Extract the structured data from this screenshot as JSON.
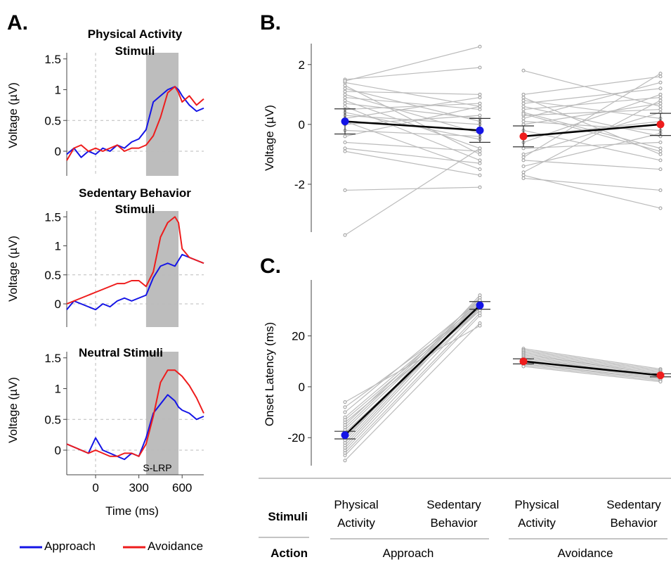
{
  "panel_labels": {
    "a": "A.",
    "b": "B.",
    "c": "C."
  },
  "legend": {
    "approach": "Approach",
    "avoidance": "Avoidance"
  },
  "colors": {
    "approach": "#1414e6",
    "avoidance": "#ee1c1c",
    "window": "#bdbdbd",
    "subject": "#bbbbbb",
    "mean": "#000000"
  },
  "bottom_axis": {
    "stimuli_label": "Stimuli",
    "action_label": "Action",
    "conditions": [
      {
        "line1": "Physical",
        "line2": "Activity"
      },
      {
        "line1": "Sedentary",
        "line2": "Behavior"
      },
      {
        "line1": "Physical",
        "line2": "Activity"
      },
      {
        "line1": "Sedentary",
        "line2": "Behavior"
      }
    ],
    "actions": [
      "Approach",
      "Avoidance"
    ]
  },
  "chart_data": [
    {
      "type": "line",
      "panel": "A",
      "title": [
        "Physical Activity",
        "Stimuli"
      ],
      "ylabel": "Voltage (µV)",
      "xlim": [
        -200,
        750
      ],
      "ylim": [
        -0.4,
        1.6
      ],
      "yticks": [
        "0",
        "0.5",
        "1",
        "1.5"
      ],
      "shaded_window": [
        350,
        575
      ],
      "series": [
        {
          "name": "Approach",
          "points": [
            [
              -200,
              -0.05
            ],
            [
              -150,
              0.05
            ],
            [
              -100,
              -0.1
            ],
            [
              -50,
              0.0
            ],
            [
              0,
              -0.05
            ],
            [
              50,
              0.05
            ],
            [
              100,
              0.0
            ],
            [
              150,
              0.1
            ],
            [
              200,
              0.05
            ],
            [
              250,
              0.15
            ],
            [
              300,
              0.2
            ],
            [
              350,
              0.35
            ],
            [
              400,
              0.8
            ],
            [
              450,
              0.9
            ],
            [
              500,
              1.0
            ],
            [
              550,
              1.05
            ],
            [
              575,
              1.0
            ],
            [
              600,
              0.9
            ],
            [
              650,
              0.75
            ],
            [
              700,
              0.65
            ],
            [
              750,
              0.7
            ]
          ]
        },
        {
          "name": "Avoidance",
          "points": [
            [
              -200,
              -0.15
            ],
            [
              -150,
              0.05
            ],
            [
              -100,
              0.1
            ],
            [
              -50,
              0.0
            ],
            [
              0,
              0.05
            ],
            [
              50,
              0.0
            ],
            [
              100,
              0.05
            ],
            [
              150,
              0.1
            ],
            [
              200,
              0.0
            ],
            [
              250,
              0.05
            ],
            [
              300,
              0.05
            ],
            [
              350,
              0.1
            ],
            [
              400,
              0.25
            ],
            [
              450,
              0.55
            ],
            [
              500,
              0.95
            ],
            [
              550,
              1.05
            ],
            [
              575,
              0.95
            ],
            [
              600,
              0.8
            ],
            [
              650,
              0.9
            ],
            [
              700,
              0.75
            ],
            [
              750,
              0.85
            ]
          ]
        }
      ]
    },
    {
      "type": "line",
      "panel": "A",
      "title": [
        "Sedentary Behavior",
        "Stimuli"
      ],
      "ylabel": "Voltage (µV)",
      "xlim": [
        -200,
        750
      ],
      "ylim": [
        -0.4,
        1.6
      ],
      "yticks": [
        "0",
        "0.5",
        "1",
        "1.5"
      ],
      "shaded_window": [
        350,
        575
      ],
      "series": [
        {
          "name": "Approach",
          "points": [
            [
              -200,
              -0.1
            ],
            [
              -150,
              0.05
            ],
            [
              -100,
              0.0
            ],
            [
              -50,
              -0.05
            ],
            [
              0,
              -0.1
            ],
            [
              50,
              0.0
            ],
            [
              100,
              -0.05
            ],
            [
              150,
              0.05
            ],
            [
              200,
              0.1
            ],
            [
              250,
              0.05
            ],
            [
              300,
              0.1
            ],
            [
              350,
              0.15
            ],
            [
              400,
              0.45
            ],
            [
              450,
              0.65
            ],
            [
              500,
              0.7
            ],
            [
              550,
              0.65
            ],
            [
              575,
              0.75
            ],
            [
              600,
              0.85
            ],
            [
              650,
              0.8
            ],
            [
              700,
              0.75
            ],
            [
              750,
              0.7
            ]
          ]
        },
        {
          "name": "Avoidance",
          "points": [
            [
              -200,
              0.0
            ],
            [
              -150,
              0.05
            ],
            [
              -100,
              0.1
            ],
            [
              -50,
              0.15
            ],
            [
              0,
              0.2
            ],
            [
              50,
              0.25
            ],
            [
              100,
              0.3
            ],
            [
              150,
              0.35
            ],
            [
              200,
              0.35
            ],
            [
              250,
              0.4
            ],
            [
              300,
              0.4
            ],
            [
              350,
              0.3
            ],
            [
              400,
              0.55
            ],
            [
              450,
              1.15
            ],
            [
              500,
              1.4
            ],
            [
              550,
              1.5
            ],
            [
              575,
              1.4
            ],
            [
              600,
              0.95
            ],
            [
              650,
              0.8
            ],
            [
              700,
              0.75
            ],
            [
              750,
              0.7
            ]
          ]
        }
      ]
    },
    {
      "type": "line",
      "panel": "A",
      "title": [
        "Neutral Stimuli"
      ],
      "ylabel": "Voltage (µV)",
      "xlabel": "Time (ms)",
      "xticks": [
        "0",
        "300",
        "600"
      ],
      "xlim": [
        -200,
        750
      ],
      "ylim": [
        -0.4,
        1.6
      ],
      "yticks": [
        "0",
        "0.5",
        "1",
        "1.5"
      ],
      "shaded_window": [
        350,
        575
      ],
      "window_label": "S-LRP",
      "series": [
        {
          "name": "Approach",
          "points": [
            [
              -200,
              0.1
            ],
            [
              -150,
              0.05
            ],
            [
              -100,
              0.0
            ],
            [
              -50,
              -0.05
            ],
            [
              0,
              0.2
            ],
            [
              50,
              0.0
            ],
            [
              100,
              -0.05
            ],
            [
              150,
              -0.1
            ],
            [
              200,
              -0.15
            ],
            [
              250,
              -0.05
            ],
            [
              300,
              -0.1
            ],
            [
              350,
              0.2
            ],
            [
              400,
              0.6
            ],
            [
              450,
              0.75
            ],
            [
              500,
              0.9
            ],
            [
              550,
              0.8
            ],
            [
              575,
              0.7
            ],
            [
              600,
              0.65
            ],
            [
              650,
              0.6
            ],
            [
              700,
              0.5
            ],
            [
              750,
              0.55
            ]
          ]
        },
        {
          "name": "Avoidance",
          "points": [
            [
              -200,
              0.1
            ],
            [
              -150,
              0.05
            ],
            [
              -100,
              0.0
            ],
            [
              -50,
              -0.05
            ],
            [
              0,
              0.0
            ],
            [
              50,
              -0.05
            ],
            [
              100,
              -0.1
            ],
            [
              150,
              -0.1
            ],
            [
              200,
              -0.05
            ],
            [
              250,
              -0.05
            ],
            [
              300,
              -0.1
            ],
            [
              350,
              0.1
            ],
            [
              400,
              0.55
            ],
            [
              450,
              1.1
            ],
            [
              500,
              1.3
            ],
            [
              550,
              1.3
            ],
            [
              575,
              1.25
            ],
            [
              600,
              1.2
            ],
            [
              650,
              1.05
            ],
            [
              700,
              0.85
            ],
            [
              750,
              0.6
            ]
          ]
        }
      ]
    },
    {
      "type": "scatter",
      "panel": "B",
      "ylabel": "Voltage (µV)",
      "ylim": [
        -3.6,
        2.7
      ],
      "yticks": [
        2,
        0,
        -2
      ],
      "means": [
        0.1,
        -0.2,
        -0.4,
        0.0
      ],
      "errors": [
        0.42,
        0.4,
        0.35,
        0.37
      ],
      "subjects": [
        [
          [
            1.5,
            1.9
          ],
          [
            1.4,
            0.6
          ],
          [
            1.3,
            -1.0
          ],
          [
            1.2,
            0.1
          ],
          [
            1.1,
            1.0
          ],
          [
            1.0,
            -0.3
          ],
          [
            0.9,
            0.5
          ],
          [
            0.8,
            -0.8
          ],
          [
            0.7,
            0.2
          ],
          [
            0.6,
            -1.2
          ],
          [
            0.5,
            0.7
          ],
          [
            0.4,
            -0.5
          ],
          [
            0.3,
            0.0
          ],
          [
            0.2,
            0.9
          ],
          [
            0.1,
            -1.5
          ],
          [
            0.0,
            0.3
          ],
          [
            -0.2,
            -0.4
          ],
          [
            -0.4,
            0.6
          ],
          [
            -0.6,
            -0.9
          ],
          [
            -0.8,
            -1.3
          ],
          [
            -0.9,
            -1.7
          ],
          [
            -2.2,
            -2.1
          ],
          [
            -3.7,
            -0.8
          ],
          [
            1.45,
            2.6
          ]
        ],
        [
          [
            1.8,
            0.6
          ],
          [
            1.0,
            1.6
          ],
          [
            0.9,
            -1.0
          ],
          [
            0.8,
            0.2
          ],
          [
            0.7,
            1.2
          ],
          [
            0.6,
            -0.4
          ],
          [
            0.5,
            0.9
          ],
          [
            0.4,
            -0.8
          ],
          [
            0.3,
            0.5
          ],
          [
            0.2,
            1.4
          ],
          [
            0.1,
            -0.2
          ],
          [
            0.0,
            0.7
          ],
          [
            -0.2,
            -1.2
          ],
          [
            -0.4,
            0.1
          ],
          [
            -0.6,
            1.0
          ],
          [
            -0.8,
            -0.6
          ],
          [
            -1.0,
            0.4
          ],
          [
            -1.2,
            -1.5
          ],
          [
            -1.4,
            -0.3
          ],
          [
            -1.6,
            0.8
          ],
          [
            -1.8,
            -2.2
          ],
          [
            -1.7,
            -2.8
          ],
          [
            -1.1,
            1.7
          ],
          [
            0.35,
            -0.9
          ]
        ]
      ]
    },
    {
      "type": "scatter",
      "panel": "C",
      "ylabel": "Onset Latency (ms)",
      "ylim": [
        -31,
        42
      ],
      "yticks": [
        20,
        0,
        -20
      ],
      "means": [
        -19,
        32,
        10,
        4.5
      ],
      "errors": [
        1.5,
        1.5,
        1.0,
        0.6
      ],
      "subjects": [
        [
          [
            -29,
            25
          ],
          [
            -27,
            28
          ],
          [
            -26,
            29
          ],
          [
            -25,
            31
          ],
          [
            -24,
            33
          ],
          [
            -23,
            34
          ],
          [
            -22,
            35
          ],
          [
            -21,
            36
          ],
          [
            -20,
            32
          ],
          [
            -19,
            30
          ],
          [
            -18,
            31
          ],
          [
            -17,
            33
          ],
          [
            -16,
            34
          ],
          [
            -15,
            35
          ],
          [
            -14,
            30
          ],
          [
            -13,
            32
          ],
          [
            -12,
            33
          ],
          [
            -10,
            34
          ],
          [
            -8,
            31
          ],
          [
            -6,
            24
          ]
        ],
        [
          [
            15,
            7
          ],
          [
            14.5,
            6.5
          ],
          [
            14,
            6
          ],
          [
            13.5,
            5.5
          ],
          [
            13,
            5
          ],
          [
            12.5,
            5
          ],
          [
            12,
            4.5
          ],
          [
            11.5,
            4
          ],
          [
            11,
            4
          ],
          [
            10.5,
            3.5
          ],
          [
            10,
            3.5
          ],
          [
            9.5,
            3
          ],
          [
            9,
            3
          ],
          [
            8.5,
            2.5
          ],
          [
            8,
            2
          ]
        ]
      ]
    }
  ]
}
